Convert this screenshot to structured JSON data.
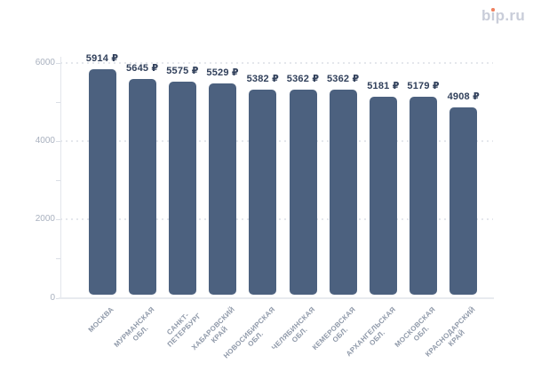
{
  "header": {
    "logo_text": "bip.ru",
    "logo_color": "#c9cdd9",
    "logo_dot_color": "#ef8160"
  },
  "chart_data": {
    "type": "bar",
    "title": "",
    "xlabel": "",
    "ylabel": "",
    "currency_symbol": "₽",
    "categories": [
      "МОСКВА",
      "МУРМАНСКАЯ ОБЛ.",
      "САНКТ-ПЕТЕРБУРГ",
      "ХАБАРОВСКИЙ КРАЙ",
      "НОВОСИБИРСКАЯ ОБЛ.",
      "ЧЕЛЯБИНСКАЯ ОБЛ.",
      "КЕМЕРОВСКАЯ ОБЛ.",
      "АРХАНГЕЛЬСКАЯ ОБЛ.",
      "МОСКОВСКАЯ ОБЛ.",
      "КРАСНОДАРСКИЙ КРАЙ"
    ],
    "category_label_lines": [
      [
        "МОСКВА"
      ],
      [
        "МУРМАНСКАЯ",
        "ОБЛ."
      ],
      [
        "САНКТ-",
        "ПЕТЕРБУРГ"
      ],
      [
        "ХАБАРОВСКИЙ",
        "КРАЙ"
      ],
      [
        "НОВОСИБИРСКАЯ",
        "ОБЛ."
      ],
      [
        "ЧЕЛЯБИНСКАЯ",
        "ОБЛ."
      ],
      [
        "КЕМЕРОВСКАЯ",
        "ОБЛ."
      ],
      [
        "АРХАНГЕЛЬСКАЯ",
        "ОБЛ."
      ],
      [
        "МОСКОВСКАЯ",
        "ОБЛ."
      ],
      [
        "КРАСНОДАРСКИЙ",
        "КРАЙ"
      ]
    ],
    "values": [
      5914,
      5645,
      5575,
      5529,
      5382,
      5362,
      5362,
      5181,
      5179,
      4908
    ],
    "value_labels": [
      "5914 ₽",
      "5645 ₽",
      "5575 ₽",
      "5529 ₽",
      "5382 ₽",
      "5362 ₽",
      "5362 ₽",
      "5181 ₽",
      "5179 ₽",
      "4908 ₽"
    ],
    "ylim": [
      0,
      6000
    ],
    "y_major_ticks": [
      0,
      2000,
      4000,
      6000
    ],
    "y_major_tick_labels": [
      "0",
      "2000",
      "4000",
      "6000"
    ],
    "y_minor_tick_step": 1000,
    "grid": "horizontal dotted lines at major ticks",
    "legend": "none",
    "bar_color": "#4c617f",
    "value_label_color": "#31405b",
    "y_tick_label_color": "#a9b1bf",
    "category_label_color": "#8f99a9"
  }
}
